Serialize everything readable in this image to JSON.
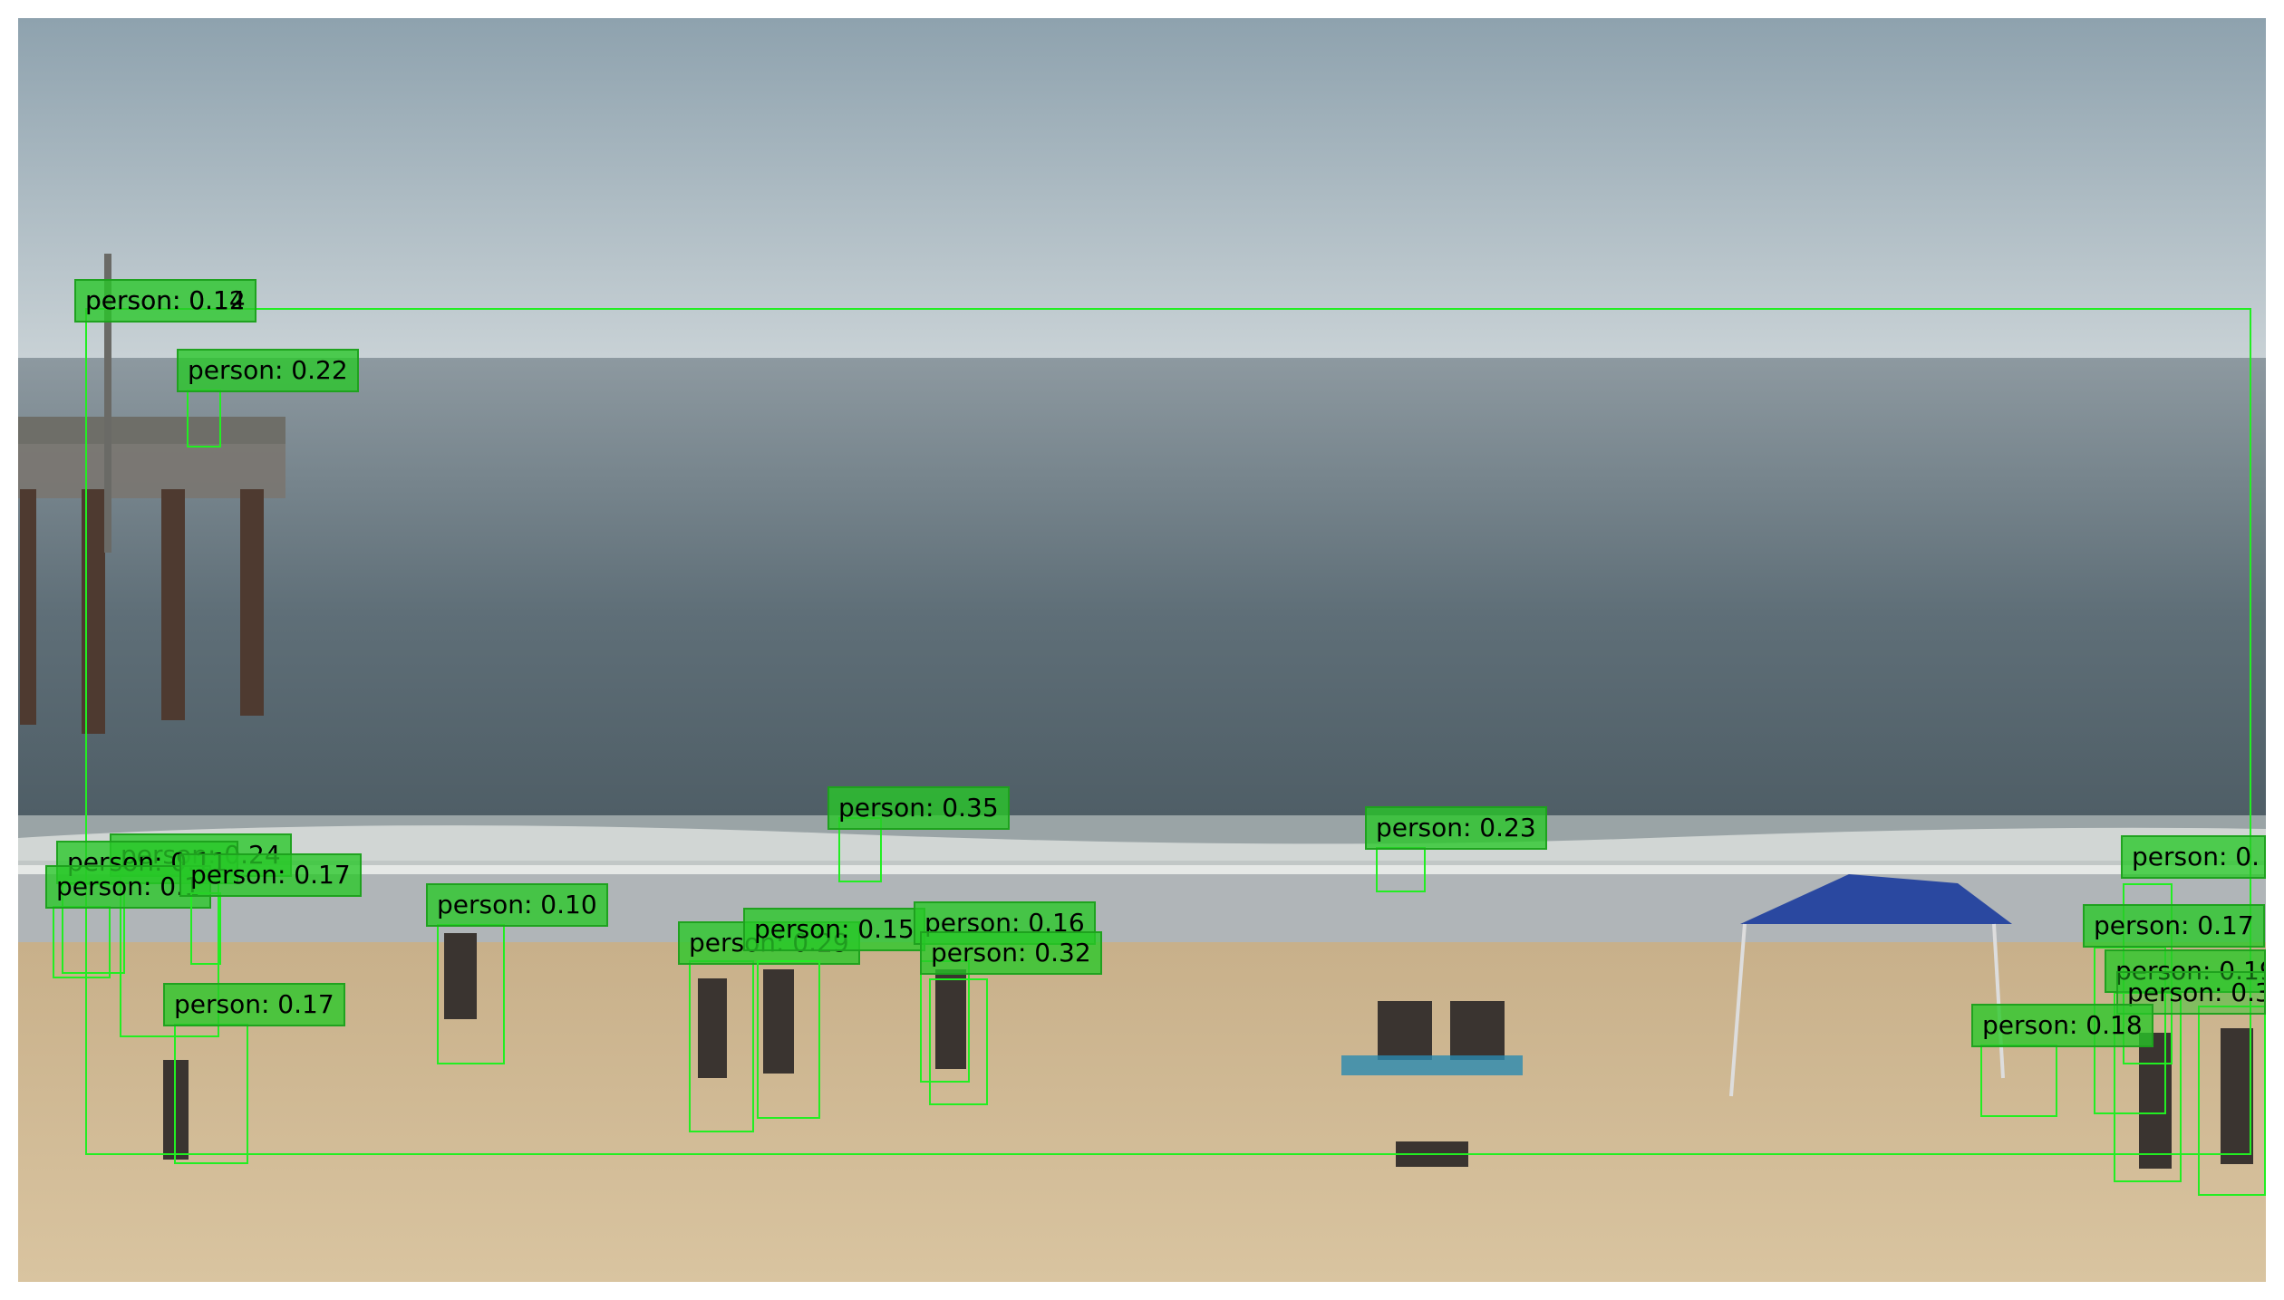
{
  "scene": {
    "description_icon": "beach-photo",
    "colors": {
      "box": "#22ee22",
      "label_bg": "#3cc83c"
    }
  },
  "detections": [
    {
      "label": "person: 0.12"
    },
    {
      "label": "person: 0.14"
    },
    {
      "label": "person: 0.22"
    },
    {
      "label": "person: 0.24"
    },
    {
      "label": "person: 0.11"
    },
    {
      "label": "person: 0.1"
    },
    {
      "label": "person: 0.17"
    },
    {
      "label": "person: 0.10"
    },
    {
      "label": "person: 0.17"
    },
    {
      "label": "person: 0.35"
    },
    {
      "label": "person: 0.29"
    },
    {
      "label": "person: 0.15"
    },
    {
      "label": "person: 0.16"
    },
    {
      "label": "person: 0.32"
    },
    {
      "label": "person: 0.23"
    },
    {
      "label": "person: 0."
    },
    {
      "label": "person: 0.17"
    },
    {
      "label": "person: 0.19"
    },
    {
      "label": "person: 0.3"
    },
    {
      "label": "person: 0.18"
    }
  ]
}
